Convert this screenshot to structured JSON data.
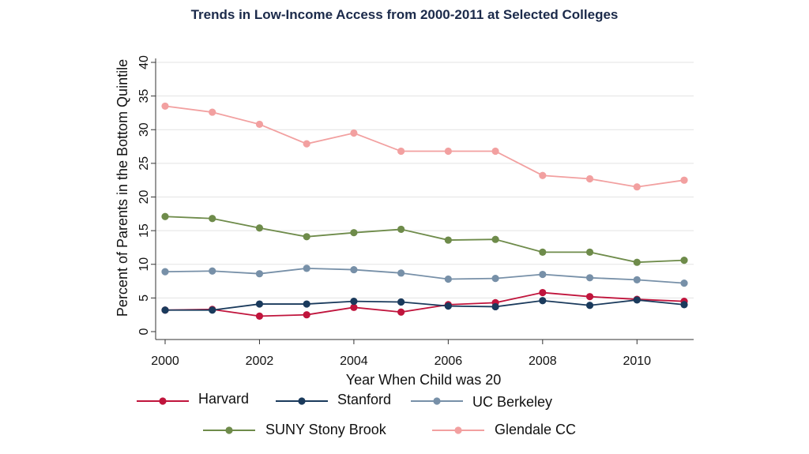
{
  "chart_data": {
    "type": "line",
    "title": "Trends in Low-Income Access from 2000-2011 at Selected Colleges",
    "xlabel": "Year When Child was 20",
    "ylabel": "Percent of Parents in the Bottom Quintile",
    "x": [
      2000,
      2001,
      2002,
      2003,
      2004,
      2005,
      2006,
      2007,
      2008,
      2009,
      2010,
      2011
    ],
    "xlim": [
      2000,
      2011
    ],
    "ylim": [
      0,
      40
    ],
    "xticks": [
      "2000",
      "2002",
      "2004",
      "2006",
      "2008",
      "2010"
    ],
    "yticks": [
      "0",
      "5",
      "10",
      "15",
      "20",
      "25",
      "30",
      "35",
      "40"
    ],
    "grid": true,
    "legend_position": "bottom",
    "series": [
      {
        "name": "Harvard",
        "color": "#c0143c",
        "values": [
          3.2,
          3.3,
          2.3,
          2.5,
          3.6,
          2.9,
          4.0,
          4.3,
          5.8,
          5.2,
          4.8,
          4.5
        ]
      },
      {
        "name": "Stanford",
        "color": "#1a3a5c",
        "values": [
          3.2,
          3.2,
          4.1,
          4.1,
          4.5,
          4.4,
          3.8,
          3.7,
          4.6,
          3.9,
          4.7,
          4.0
        ]
      },
      {
        "name": "UC Berkeley",
        "color": "#7790a8",
        "values": [
          8.9,
          9.0,
          8.6,
          9.4,
          9.2,
          8.7,
          7.8,
          7.9,
          8.5,
          8.0,
          7.7,
          7.2
        ]
      },
      {
        "name": "SUNY Stony Brook",
        "color": "#6e8b4a",
        "values": [
          17.1,
          16.8,
          15.4,
          14.1,
          14.7,
          15.2,
          13.6,
          13.7,
          11.8,
          11.8,
          10.3,
          10.6
        ]
      },
      {
        "name": "Glendale CC",
        "color": "#f2a0a0",
        "values": [
          33.5,
          32.6,
          30.8,
          27.9,
          29.5,
          26.8,
          26.8,
          26.8,
          23.2,
          22.7,
          21.5,
          22.5
        ]
      }
    ]
  }
}
